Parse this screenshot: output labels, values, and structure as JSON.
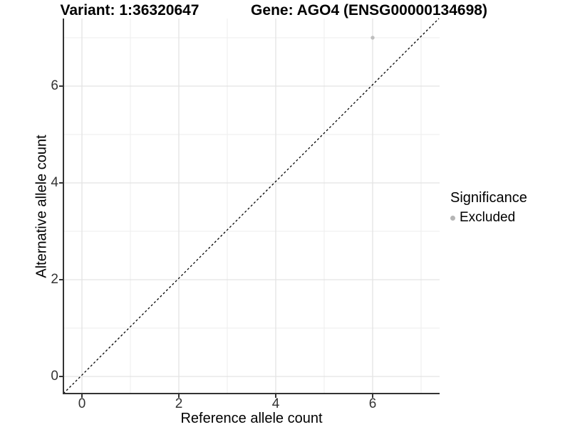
{
  "chart_data": {
    "type": "scatter",
    "title_left": "Variant: 1:36320647",
    "title_right": "Gene: AGO4 (ENSG00000134698)",
    "xlabel": "Reference allele count",
    "ylabel": "Alternative allele count",
    "xlim": [
      -0.35,
      7.35
    ],
    "ylim": [
      -0.35,
      7.35
    ],
    "x_ticks": [
      0,
      2,
      4,
      6
    ],
    "y_ticks": [
      0,
      2,
      4,
      6
    ],
    "x_minor_grid": [
      1,
      3,
      5,
      7
    ],
    "y_minor_grid": [
      1,
      3,
      5,
      7
    ],
    "grid": "on",
    "points": [
      {
        "x": 6,
        "y": 7,
        "significance": "Excluded"
      }
    ],
    "reference_line": {
      "equation": "y = x",
      "style": "dashed",
      "color": "#000000"
    },
    "legend": {
      "title": "Significance",
      "position": "right",
      "entries": [
        {
          "label": "Excluded",
          "color": "#b5b5b5"
        }
      ]
    },
    "colors": {
      "point": "#bebebe",
      "grid_major": "#e3e3e3",
      "grid_minor": "#eeeeee",
      "axis_line": "#333333",
      "tick_label": "#333333"
    }
  }
}
